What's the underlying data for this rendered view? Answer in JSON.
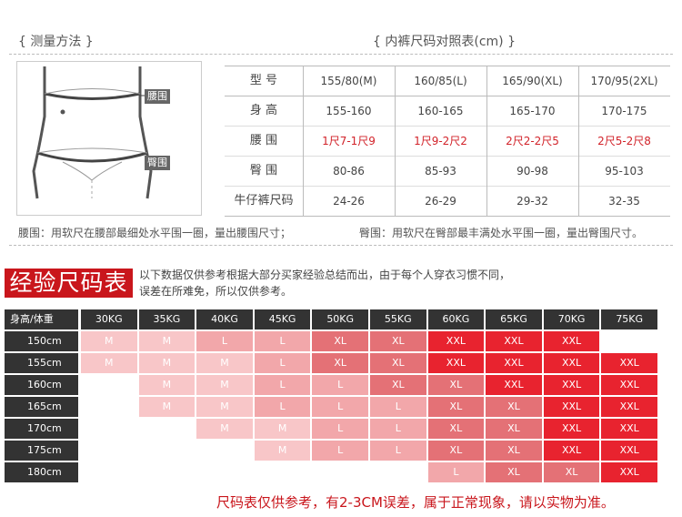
{
  "top": {
    "measure_header": "{ 测量方法 }",
    "size_chart_header": "{ 内裤尺码对照表(cm) }",
    "waist_tag": "腰围",
    "hip_tag": "臀围",
    "table": {
      "headers": [
        "型 号",
        "155/80(M)",
        "160/85(L)",
        "165/90(XL)",
        "170/95(2XL)"
      ],
      "rows": [
        {
          "label": "身 高",
          "values": [
            "155-160",
            "160-165",
            "165-170",
            "170-175"
          ],
          "red": false
        },
        {
          "label": "腰 围",
          "values": [
            "1尺7-1尺9",
            "1尺9-2尺2",
            "2尺2-2尺5",
            "2尺5-2尺8"
          ],
          "red": true
        },
        {
          "label": "臀 围",
          "values": [
            "80-86",
            "85-93",
            "90-98",
            "95-103"
          ],
          "red": false
        },
        {
          "label": "牛仔裤尺码",
          "values": [
            "24-26",
            "26-29",
            "29-32",
            "32-35"
          ],
          "red": false
        }
      ]
    },
    "waist_note": "腰围：用软尺在腰部最细处水平围一圈，量出腰围尺寸；",
    "hip_note": "臀围：用软尺在臀部最丰满处水平围一圈，量出臀围尺寸。"
  },
  "experience": {
    "title": "经验尺码表",
    "intro_line1": "以下数据仅供参考根据大部分买家经验总结而出，由于每个人穿衣习惯不同，",
    "intro_line2": "误差在所难免，所以仅供参考。",
    "corner": "身高/体重",
    "weights": [
      "30KG",
      "35KG",
      "40KG",
      "45KG",
      "50KG",
      "55KG",
      "60KG",
      "65KG",
      "70KG",
      "75KG"
    ],
    "rows": [
      {
        "height": "150cm",
        "sizes": [
          "M",
          "M",
          "L",
          "L",
          "XL",
          "XL",
          "XXL",
          "XXL",
          "XXL",
          ""
        ]
      },
      {
        "height": "155cm",
        "sizes": [
          "M",
          "M",
          "M",
          "L",
          "XL",
          "XL",
          "XXL",
          "XXL",
          "XXL",
          "XXL"
        ]
      },
      {
        "height": "160cm",
        "sizes": [
          "",
          "M",
          "M",
          "L",
          "L",
          "XL",
          "XL",
          "XXL",
          "XXL",
          "XXL"
        ]
      },
      {
        "height": "165cm",
        "sizes": [
          "",
          "M",
          "M",
          "L",
          "L",
          "L",
          "XL",
          "XL",
          "XXL",
          "XXL"
        ]
      },
      {
        "height": "170cm",
        "sizes": [
          "",
          "",
          "M",
          "M",
          "L",
          "L",
          "XL",
          "XL",
          "XXL",
          "XXL"
        ]
      },
      {
        "height": "175cm",
        "sizes": [
          "",
          "",
          "",
          "M",
          "L",
          "L",
          "XL",
          "XL",
          "XXL",
          "XXL"
        ]
      },
      {
        "height": "180cm",
        "sizes": [
          "",
          "",
          "",
          "",
          "",
          "",
          "L",
          "XL",
          "XL",
          "XXL"
        ]
      }
    ],
    "colors": {
      "M": "#f8c6c8",
      "L": "#f2a7aa",
      "XL": "#e47176",
      "XXL": "#e8232f"
    }
  },
  "footer": "尺码表仅供参考，有2-3CM误差，属于正常现象，请以实物为准。"
}
